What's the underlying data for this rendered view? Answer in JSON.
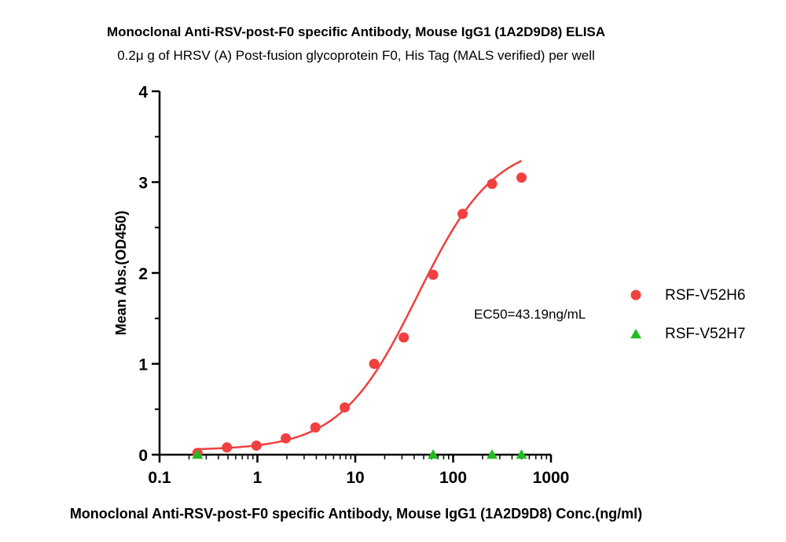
{
  "chart_data": {
    "type": "scatter",
    "title": "Monoclonal Anti-RSV-post-F0 specific Antibody, Mouse IgG1 (1A2D9D8) ELISA",
    "subtitle": "0.2μ g of HRSV (A) Post-fusion glycoprotein F0, His Tag (MALS verified) per well",
    "xlabel": "Monoclonal Anti-RSV-post-F0 specific Antibody, Mouse IgG1 (1A2D9D8) Conc.(ng/ml)",
    "ylabel": "Mean Abs.(OD450)",
    "xscale": "log",
    "xlim": [
      0.1,
      1000
    ],
    "ylim": [
      0,
      4
    ],
    "xticks": [
      0.1,
      1,
      10,
      100,
      1000
    ],
    "xtick_labels": [
      "0.1",
      "1",
      "10",
      "100",
      "1000"
    ],
    "yticks": [
      0,
      1,
      2,
      3,
      4
    ],
    "ytick_labels": [
      "0",
      "1",
      "2",
      "3",
      "4"
    ],
    "annotation": "EC50=43.19ng/mL",
    "series": [
      {
        "name": "RSF-V52H6",
        "marker": "circle",
        "color": "#f04040",
        "x": [
          0.244,
          0.488,
          0.977,
          1.95,
          3.91,
          7.81,
          15.6,
          31.3,
          62.5,
          125,
          250,
          500
        ],
        "y": [
          0.02,
          0.08,
          0.1,
          0.18,
          0.3,
          0.52,
          1.0,
          1.29,
          1.98,
          2.65,
          2.98,
          3.05
        ],
        "fit": {
          "model": "4PL",
          "bottom": 0.05,
          "top": 3.45,
          "ec50": 43.19,
          "hill": 1.1,
          "x_range": [
            0.244,
            500
          ]
        }
      },
      {
        "name": "RSF-V52H7",
        "marker": "triangle",
        "color": "#22bb22",
        "x": [
          0.244,
          62.5,
          250,
          500
        ],
        "y": [
          0.0,
          0.0,
          0.0,
          0.0
        ]
      }
    ]
  }
}
